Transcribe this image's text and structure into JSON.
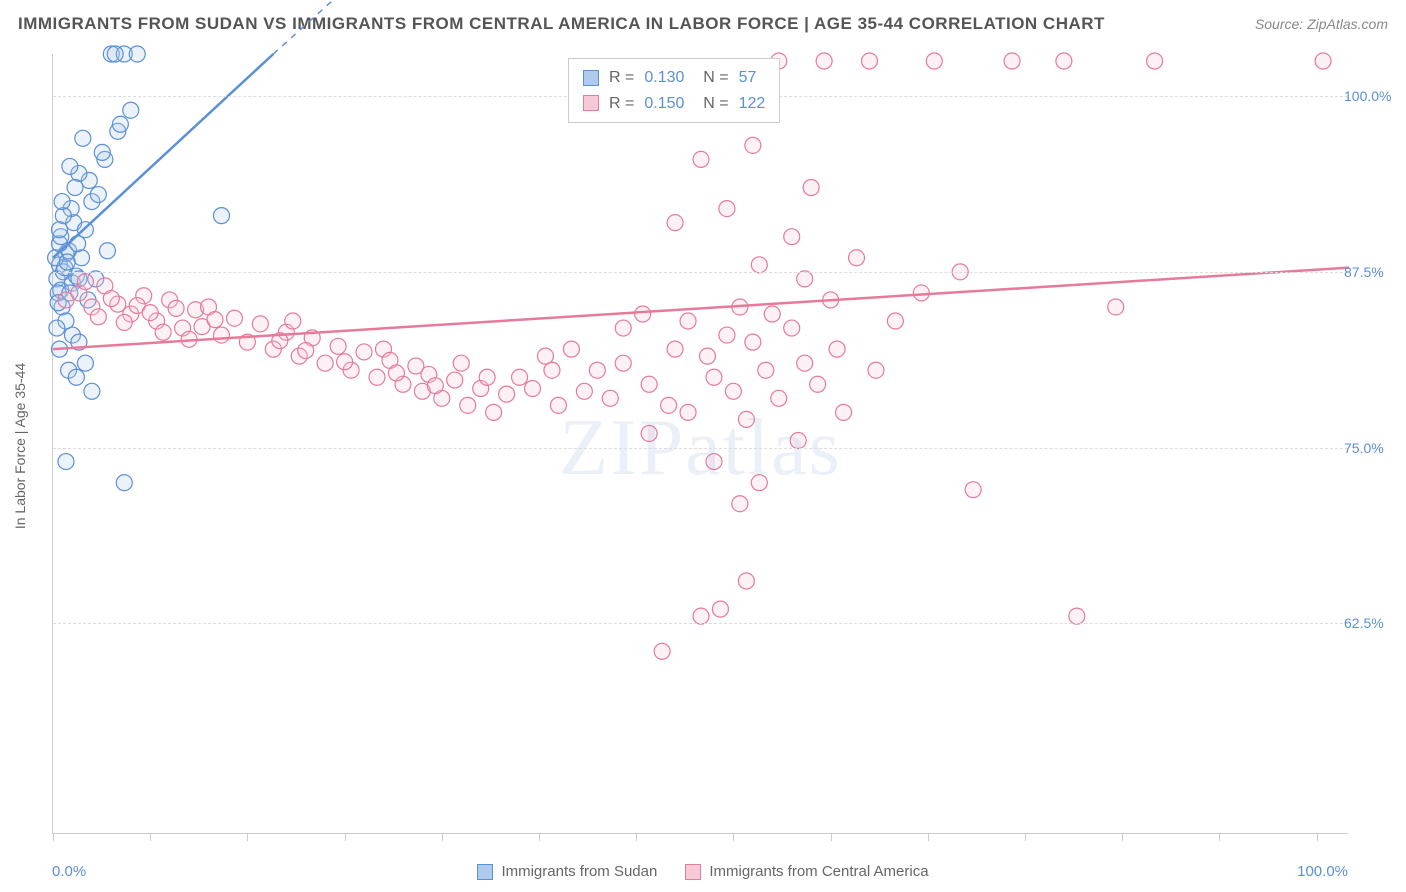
{
  "title": "IMMIGRANTS FROM SUDAN VS IMMIGRANTS FROM CENTRAL AMERICA IN LABOR FORCE | AGE 35-44 CORRELATION CHART",
  "source_label": "Source: ZipAtlas.com",
  "watermark": "ZIPatlas",
  "y_axis_label": "In Labor Force | Age 35-44",
  "chart": {
    "type": "scatter",
    "background_color": "#ffffff",
    "grid_color": "#dddddd",
    "axis_color": "#cccccc",
    "label_color": "#5b8fd6",
    "text_color": "#666666",
    "title_color": "#555555",
    "title_fontsize": 17,
    "label_fontsize": 14,
    "xlim": [
      0,
      100
    ],
    "ylim": [
      47.5,
      103
    ],
    "y_ticks": [
      62.5,
      75.0,
      87.5,
      100.0
    ],
    "y_tick_labels": [
      "62.5%",
      "75.0%",
      "87.5%",
      "100.0%"
    ],
    "x_tick_positions": [
      0,
      7.5,
      15,
      22.5,
      30,
      37.5,
      45,
      52.5,
      60,
      67.5,
      75,
      82.5,
      90,
      97.5
    ],
    "x_end_labels": [
      "0.0%",
      "100.0%"
    ],
    "marker_radius": 8,
    "marker_stroke_width": 1.2,
    "marker_fill_opacity": 0.25,
    "trend_line_width": 2.5
  },
  "series": [
    {
      "name": "Immigrants from Sudan",
      "color_stroke": "#5b8fd6",
      "color_fill": "#aecbed",
      "stats": {
        "R": "0.130",
        "N": "57"
      },
      "trend": {
        "x1": 0,
        "y1": 88.5,
        "x2": 17,
        "y2": 103,
        "dashed_x2": 35,
        "dashed_y2": 118
      },
      "points": [
        [
          0.3,
          87.0
        ],
        [
          0.5,
          88.0
        ],
        [
          0.6,
          86.2
        ],
        [
          0.8,
          87.5
        ],
        [
          0.4,
          86.0
        ],
        [
          0.7,
          85.0
        ],
        [
          1.0,
          88.8
        ],
        [
          1.2,
          89.0
        ],
        [
          0.9,
          87.8
        ],
        [
          1.5,
          86.7
        ],
        [
          0.2,
          88.5
        ],
        [
          1.8,
          87.2
        ],
        [
          0.5,
          89.5
        ],
        [
          1.1,
          88.2
        ],
        [
          0.4,
          85.3
        ],
        [
          2.0,
          87.0
        ],
        [
          1.3,
          86.0
        ],
        [
          0.6,
          90.0
        ],
        [
          1.6,
          91.0
        ],
        [
          2.2,
          88.5
        ],
        [
          1.4,
          92.0
        ],
        [
          2.5,
          90.5
        ],
        [
          1.9,
          89.5
        ],
        [
          0.8,
          91.5
        ],
        [
          3.0,
          92.5
        ],
        [
          3.5,
          93.0
        ],
        [
          2.8,
          94.0
        ],
        [
          4.0,
          95.5
        ],
        [
          2.0,
          94.5
        ],
        [
          3.8,
          96.0
        ],
        [
          5.0,
          97.5
        ],
        [
          4.5,
          103.0
        ],
        [
          5.5,
          103.0
        ],
        [
          6.5,
          103.0
        ],
        [
          4.8,
          103.0
        ],
        [
          2.3,
          97.0
        ],
        [
          1.7,
          93.5
        ],
        [
          5.2,
          98.0
        ],
        [
          6.0,
          99.0
        ],
        [
          1.0,
          84.0
        ],
        [
          1.5,
          83.0
        ],
        [
          0.3,
          83.5
        ],
        [
          2.0,
          82.5
        ],
        [
          1.2,
          80.5
        ],
        [
          2.5,
          81.0
        ],
        [
          3.0,
          79.0
        ],
        [
          1.8,
          80.0
        ],
        [
          0.5,
          82.0
        ],
        [
          13.0,
          91.5
        ],
        [
          1.0,
          74.0
        ],
        [
          5.5,
          72.5
        ],
        [
          0.7,
          92.5
        ],
        [
          1.3,
          95.0
        ],
        [
          4.2,
          89.0
        ],
        [
          3.3,
          87.0
        ],
        [
          2.7,
          85.5
        ],
        [
          0.5,
          90.5
        ]
      ]
    },
    {
      "name": "Immigrants from Central America",
      "color_stroke": "#e67a9a",
      "color_fill": "#f7c9d6",
      "stats": {
        "R": "0.150",
        "N": "122"
      },
      "trend": {
        "x1": 0,
        "y1": 82.0,
        "x2": 100,
        "y2": 87.8
      },
      "points": [
        [
          1.0,
          85.5
        ],
        [
          2.0,
          86.0
        ],
        [
          3.0,
          85.0
        ],
        [
          4.0,
          86.5
        ],
        [
          5.0,
          85.2
        ],
        [
          6.0,
          84.5
        ],
        [
          7.0,
          85.8
        ],
        [
          8.0,
          84.0
        ],
        [
          9.0,
          85.5
        ],
        [
          10.0,
          83.5
        ],
        [
          11.0,
          84.8
        ],
        [
          12.0,
          85.0
        ],
        [
          13.0,
          83.0
        ],
        [
          14.0,
          84.2
        ],
        [
          15.0,
          82.5
        ],
        [
          16.0,
          83.8
        ],
        [
          17.0,
          82.0
        ],
        [
          18.0,
          83.2
        ],
        [
          18.5,
          84.0
        ],
        [
          19.0,
          81.5
        ],
        [
          20.0,
          82.8
        ],
        [
          21.0,
          81.0
        ],
        [
          22.0,
          82.2
        ],
        [
          23.0,
          80.5
        ],
        [
          24.0,
          81.8
        ],
        [
          25.0,
          80.0
        ],
        [
          25.5,
          82.0
        ],
        [
          26.0,
          81.2
        ],
        [
          27.0,
          79.5
        ],
        [
          28.0,
          80.8
        ],
        [
          28.5,
          79.0
        ],
        [
          29.0,
          80.2
        ],
        [
          30.0,
          78.5
        ],
        [
          31.0,
          79.8
        ],
        [
          31.5,
          81.0
        ],
        [
          32.0,
          78.0
        ],
        [
          33.0,
          79.2
        ],
        [
          33.5,
          80.0
        ],
        [
          34.0,
          77.5
        ],
        [
          35.0,
          78.8
        ],
        [
          36.0,
          80.0
        ],
        [
          37.0,
          79.2
        ],
        [
          38.0,
          81.5
        ],
        [
          38.5,
          80.5
        ],
        [
          39.0,
          78.0
        ],
        [
          40.0,
          82.0
        ],
        [
          41.0,
          79.0
        ],
        [
          42.0,
          80.5
        ],
        [
          43.0,
          78.5
        ],
        [
          44.0,
          81.0
        ],
        [
          44.0,
          83.5
        ],
        [
          45.5,
          84.5
        ],
        [
          46.0,
          76.0
        ],
        [
          46.0,
          79.5
        ],
        [
          47.0,
          60.5
        ],
        [
          47.5,
          78.0
        ],
        [
          48.0,
          91.0
        ],
        [
          48.0,
          82.0
        ],
        [
          49.0,
          77.5
        ],
        [
          49.0,
          84.0
        ],
        [
          50.0,
          63.0
        ],
        [
          50.0,
          95.5
        ],
        [
          50.5,
          81.5
        ],
        [
          51.0,
          80.0
        ],
        [
          51.0,
          74.0
        ],
        [
          51.5,
          63.5
        ],
        [
          52.0,
          92.0
        ],
        [
          52.0,
          83.0
        ],
        [
          52.5,
          79.0
        ],
        [
          53.0,
          71.0
        ],
        [
          53.0,
          85.0
        ],
        [
          53.5,
          77.0
        ],
        [
          53.5,
          65.5
        ],
        [
          54.0,
          96.5
        ],
        [
          54.0,
          82.5
        ],
        [
          54.5,
          72.5
        ],
        [
          54.5,
          88.0
        ],
        [
          55.0,
          80.5
        ],
        [
          55.5,
          84.5
        ],
        [
          56.0,
          102.5
        ],
        [
          56.0,
          78.5
        ],
        [
          57.0,
          90.0
        ],
        [
          57.0,
          83.5
        ],
        [
          57.5,
          75.5
        ],
        [
          58.0,
          87.0
        ],
        [
          58.0,
          81.0
        ],
        [
          58.5,
          93.5
        ],
        [
          59.0,
          79.5
        ],
        [
          59.5,
          102.5
        ],
        [
          60.0,
          85.5
        ],
        [
          60.5,
          82.0
        ],
        [
          61.0,
          77.5
        ],
        [
          62.0,
          88.5
        ],
        [
          63.0,
          102.5
        ],
        [
          63.5,
          80.5
        ],
        [
          65.0,
          84.0
        ],
        [
          67.0,
          86.0
        ],
        [
          68.0,
          102.5
        ],
        [
          70.0,
          87.5
        ],
        [
          71.0,
          72.0
        ],
        [
          74.0,
          102.5
        ],
        [
          78.0,
          102.5
        ],
        [
          79.0,
          63.0
        ],
        [
          82.0,
          85.0
        ],
        [
          85.0,
          102.5
        ],
        [
          98.0,
          102.5
        ],
        [
          2.5,
          86.8
        ],
        [
          3.5,
          84.3
        ],
        [
          4.5,
          85.6
        ],
        [
          5.5,
          83.9
        ],
        [
          6.5,
          85.1
        ],
        [
          7.5,
          84.6
        ],
        [
          8.5,
          83.2
        ],
        [
          9.5,
          84.9
        ],
        [
          10.5,
          82.7
        ],
        [
          11.5,
          83.6
        ],
        [
          12.5,
          84.1
        ],
        [
          17.5,
          82.6
        ],
        [
          19.5,
          81.9
        ],
        [
          22.5,
          81.1
        ],
        [
          26.5,
          80.3
        ],
        [
          29.5,
          79.4
        ]
      ]
    }
  ],
  "stats_box": {
    "rows": [
      {
        "swatch_fill": "#aecbed",
        "swatch_stroke": "#5b8fd6",
        "R_label": "R =",
        "R_val": "0.130",
        "N_label": "N =",
        "N_val": " 57"
      },
      {
        "swatch_fill": "#f7c9d6",
        "swatch_stroke": "#e67a9a",
        "R_label": "R =",
        "R_val": "0.150",
        "N_label": "N =",
        "N_val": "122"
      }
    ]
  },
  "bottom_legend": [
    {
      "fill": "#aecbed",
      "stroke": "#5b8fd6",
      "label": "Immigrants from Sudan"
    },
    {
      "fill": "#f7c9d6",
      "stroke": "#e67a9a",
      "label": "Immigrants from Central America"
    }
  ]
}
